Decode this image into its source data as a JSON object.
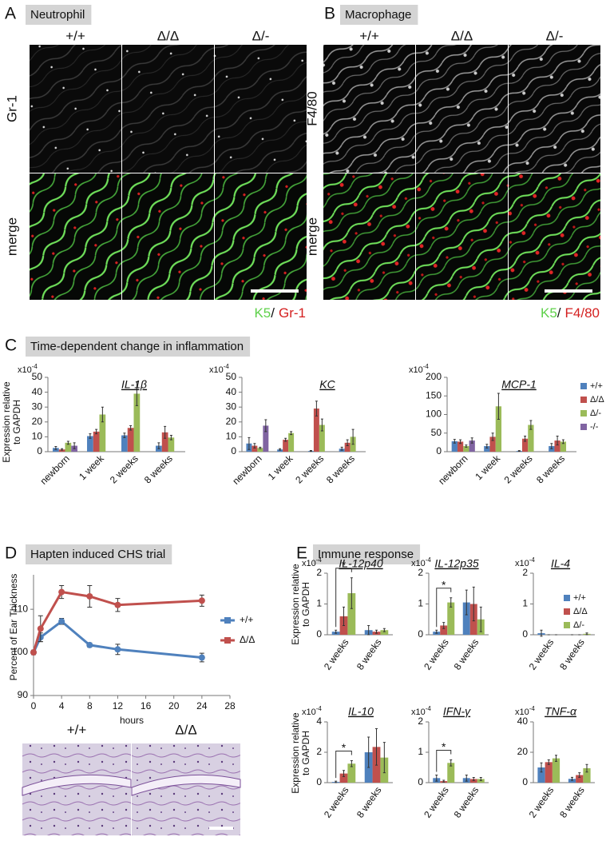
{
  "panels": [
    {
      "letter": "A",
      "title": "Neutrophil",
      "columns": [
        "+/+",
        "Δ/Δ",
        "Δ/-"
      ],
      "rows": [
        "Gr-1",
        "merge"
      ],
      "stain": {
        "green": "K5",
        "separator": "/",
        "red": "Gr-1"
      }
    },
    {
      "letter": "B",
      "title": "Macrophage",
      "columns": [
        "+/+",
        "Δ/Δ",
        "Δ/-"
      ],
      "rows": [
        "F4/80",
        "merge"
      ],
      "stain": {
        "green": "K5",
        "separator": "/",
        "red": "F4/80"
      }
    },
    {
      "letter": "C",
      "title": "Time-dependent change in inflammation"
    },
    {
      "letter": "D",
      "title": "Hapten induced CHS trial",
      "columns": [
        "+/+",
        "Δ/Δ"
      ]
    },
    {
      "letter": "E",
      "title": "Immune response"
    }
  ],
  "chart_data": [
    {
      "type": "bar",
      "title": "IL-1β",
      "multiplier": {
        "base": "x10",
        "exponent": "-4"
      },
      "ylabel": [
        "Expression relative",
        "to GAPDH"
      ],
      "categories": [
        "newborn",
        "1 week",
        "2 weeks",
        "8 weeks"
      ],
      "series": [
        {
          "name": "+/+",
          "color": "#4f81bd",
          "values": [
            2.5,
            10.5,
            11,
            4
          ],
          "errors": [
            1,
            1.5,
            1.5,
            2
          ]
        },
        {
          "name": "Δ/Δ",
          "color": "#c0504d",
          "values": [
            1.5,
            13.5,
            16,
            13
          ],
          "errors": [
            0.5,
            1.5,
            1.5,
            4
          ]
        },
        {
          "name": "Δ/-",
          "color": "#9bbb59",
          "values": [
            6,
            25,
            39,
            9.5
          ],
          "errors": [
            1,
            5,
            8,
            1.5
          ]
        },
        {
          "name": "-/-",
          "color": "#8064a2",
          "values": [
            4,
            null,
            null,
            null
          ],
          "errors": [
            2,
            null,
            null,
            null
          ]
        }
      ],
      "ylim": [
        0,
        50
      ],
      "yticks": [
        0,
        10,
        20,
        30,
        40,
        50
      ],
      "legend": false
    },
    {
      "type": "bar",
      "title": "KC",
      "multiplier": {
        "base": "x10",
        "exponent": "-4"
      },
      "categories": [
        "newborn",
        "1 week",
        "2 weeks",
        "8 weeks"
      ],
      "series": [
        {
          "name": "+/+",
          "color": "#4f81bd",
          "values": [
            5.5,
            1.5,
            0.5,
            2
          ],
          "errors": [
            4,
            0.5,
            0.3,
            1
          ]
        },
        {
          "name": "Δ/Δ",
          "color": "#c0504d",
          "values": [
            4,
            8,
            29,
            6
          ],
          "errors": [
            1.5,
            1,
            5,
            2
          ]
        },
        {
          "name": "Δ/-",
          "color": "#9bbb59",
          "values": [
            2.5,
            12.5,
            18,
            10
          ],
          "errors": [
            0.5,
            1,
            4,
            5
          ]
        },
        {
          "name": "-/-",
          "color": "#8064a2",
          "values": [
            17.5,
            null,
            null,
            null
          ],
          "errors": [
            4,
            null,
            null,
            null
          ]
        }
      ],
      "ylim": [
        0,
        50
      ],
      "yticks": [
        0,
        10,
        20,
        30,
        40,
        50
      ],
      "legend": false
    },
    {
      "type": "bar",
      "title": "MCP-1",
      "multiplier": {
        "base": "x10",
        "exponent": "-4"
      },
      "categories": [
        "newborn",
        "1 week",
        "2 weeks",
        "8 weeks"
      ],
      "series": [
        {
          "name": "+/+",
          "color": "#4f81bd",
          "values": [
            28,
            15,
            2,
            15
          ],
          "errors": [
            5,
            5,
            1,
            7
          ]
        },
        {
          "name": "Δ/Δ",
          "color": "#c0504d",
          "values": [
            27,
            40,
            35,
            30
          ],
          "errors": [
            5,
            10,
            7,
            12
          ]
        },
        {
          "name": "Δ/-",
          "color": "#9bbb59",
          "values": [
            15,
            122,
            72,
            27
          ],
          "errors": [
            3,
            35,
            12,
            5
          ]
        },
        {
          "name": "-/-",
          "color": "#8064a2",
          "values": [
            30,
            null,
            null,
            null
          ],
          "errors": [
            7,
            null,
            null,
            null
          ]
        }
      ],
      "ylim": [
        0,
        200
      ],
      "yticks": [
        0,
        50,
        100,
        150,
        200
      ],
      "legend": true
    },
    {
      "type": "line",
      "xlabel": "hours",
      "ylabel": "Percent of Ear Thickness",
      "x": [
        0,
        1,
        4,
        8,
        12,
        24
      ],
      "series": [
        {
          "name": "+/+",
          "color": "#4f81bd",
          "values": [
            100,
            103.5,
            107.2,
            101.7,
            100.7,
            98.8
          ],
          "errors": [
            0.5,
            1,
            0.7,
            0.5,
            1.2,
            1
          ]
        },
        {
          "name": "Δ/Δ",
          "color": "#c0504d",
          "values": [
            100,
            105.5,
            114,
            113,
            111,
            112
          ],
          "errors": [
            0.5,
            3,
            1.5,
            2.5,
            1.5,
            1.3
          ]
        }
      ],
      "xlim": [
        0,
        28
      ],
      "xticks": [
        0,
        4,
        8,
        12,
        16,
        20,
        24,
        28
      ],
      "ylim": [
        90,
        118
      ],
      "yticks": [
        90,
        100,
        110
      ],
      "legend": true
    },
    {
      "type": "bar",
      "title": "IL-12p40",
      "multiplier": {
        "base": "x10",
        "exponent": "-4"
      },
      "ylabel": [
        "Expression relative",
        "to GAPDH"
      ],
      "categories": [
        "2 weeks",
        "8 weeks"
      ],
      "series": [
        {
          "name": "+/+",
          "color": "#4f81bd",
          "values": [
            0.1,
            0.15
          ],
          "errors": [
            0.05,
            0.15
          ]
        },
        {
          "name": "Δ/Δ",
          "color": "#c0504d",
          "values": [
            0.6,
            0.1
          ],
          "errors": [
            0.3,
            0.05
          ]
        },
        {
          "name": "Δ/-",
          "color": "#9bbb59",
          "values": [
            1.35,
            0.15
          ],
          "errors": [
            0.5,
            0.05
          ]
        }
      ],
      "ylim": [
        0,
        2
      ],
      "yticks": [
        0,
        1,
        2
      ],
      "annotation": "*",
      "legend": false
    },
    {
      "type": "bar",
      "title": "IL-12p35",
      "multiplier": {
        "base": "x10",
        "exponent": "-4"
      },
      "categories": [
        "2 weeks",
        "8 weeks"
      ],
      "series": [
        {
          "name": "+/+",
          "color": "#4f81bd",
          "values": [
            0.1,
            1.05
          ],
          "errors": [
            0.05,
            0.4
          ]
        },
        {
          "name": "Δ/Δ",
          "color": "#c0504d",
          "values": [
            0.3,
            1.0
          ],
          "errors": [
            0.1,
            0.55
          ]
        },
        {
          "name": "Δ/-",
          "color": "#9bbb59",
          "values": [
            1.05,
            0.5
          ],
          "errors": [
            0.15,
            0.4
          ]
        }
      ],
      "ylim": [
        0,
        2
      ],
      "yticks": [
        0,
        1,
        2
      ],
      "annotation": "*",
      "legend": false
    },
    {
      "type": "bar",
      "title": "IL-4",
      "multiplier": {
        "base": "x10",
        "exponent": "-4"
      },
      "categories": [
        "2 weeks",
        "8 weeks"
      ],
      "series": [
        {
          "name": "+/+",
          "color": "#4f81bd",
          "values": [
            0.05,
            0
          ],
          "errors": [
            0.1,
            0
          ]
        },
        {
          "name": "Δ/Δ",
          "color": "#c0504d",
          "values": [
            0,
            0
          ],
          "errors": [
            0,
            0
          ]
        },
        {
          "name": "Δ/-",
          "color": "#9bbb59",
          "values": [
            0,
            0.03
          ],
          "errors": [
            0,
            0.03
          ]
        }
      ],
      "ylim": [
        0,
        2
      ],
      "yticks": [
        0,
        1,
        2
      ],
      "legend": true
    },
    {
      "type": "bar",
      "title": "IL-10",
      "multiplier": {
        "base": "x10",
        "exponent": "-4"
      },
      "ylabel": [
        "Expression relative",
        "to GAPDH"
      ],
      "categories": [
        "2 weeks",
        "8 weeks"
      ],
      "series": [
        {
          "name": "+/+",
          "color": "#4f81bd",
          "values": [
            0.05,
            2.0
          ],
          "errors": [
            0.05,
            1
          ]
        },
        {
          "name": "Δ/Δ",
          "color": "#c0504d",
          "values": [
            0.6,
            2.35
          ],
          "errors": [
            0.2,
            1.2
          ]
        },
        {
          "name": "Δ/-",
          "color": "#9bbb59",
          "values": [
            1.25,
            1.65
          ],
          "errors": [
            0.2,
            1
          ]
        }
      ],
      "ylim": [
        0,
        4
      ],
      "yticks": [
        0,
        2,
        4
      ],
      "annotation": "*",
      "legend": false
    },
    {
      "type": "bar",
      "title": "IFN-γ",
      "multiplier": {
        "base": "x10",
        "exponent": "-4"
      },
      "categories": [
        "2 weeks",
        "8 weeks"
      ],
      "series": [
        {
          "name": "+/+",
          "color": "#4f81bd",
          "values": [
            0.15,
            0.15
          ],
          "errors": [
            0.1,
            0.1
          ]
        },
        {
          "name": "Δ/Δ",
          "color": "#c0504d",
          "values": [
            0.05,
            0.12
          ],
          "errors": [
            0.03,
            0.05
          ]
        },
        {
          "name": "Δ/-",
          "color": "#9bbb59",
          "values": [
            0.65,
            0.12
          ],
          "errors": [
            0.1,
            0.05
          ]
        }
      ],
      "ylim": [
        0,
        2
      ],
      "yticks": [
        0,
        1,
        2
      ],
      "annotation": "*",
      "legend": false
    },
    {
      "type": "bar",
      "title": "TNF-α",
      "multiplier": {
        "base": "x10",
        "exponent": "-4"
      },
      "categories": [
        "2 weeks",
        "8 weeks"
      ],
      "series": [
        {
          "name": "+/+",
          "color": "#4f81bd",
          "values": [
            10,
            2.5
          ],
          "errors": [
            3,
            1
          ]
        },
        {
          "name": "Δ/Δ",
          "color": "#c0504d",
          "values": [
            13.5,
            5
          ],
          "errors": [
            1.5,
            1.5
          ]
        },
        {
          "name": "Δ/-",
          "color": "#9bbb59",
          "values": [
            16,
            9.5
          ],
          "errors": [
            2,
            2.5
          ]
        }
      ],
      "ylim": [
        0,
        40
      ],
      "yticks": [
        0,
        20,
        40
      ],
      "legend": false
    }
  ]
}
